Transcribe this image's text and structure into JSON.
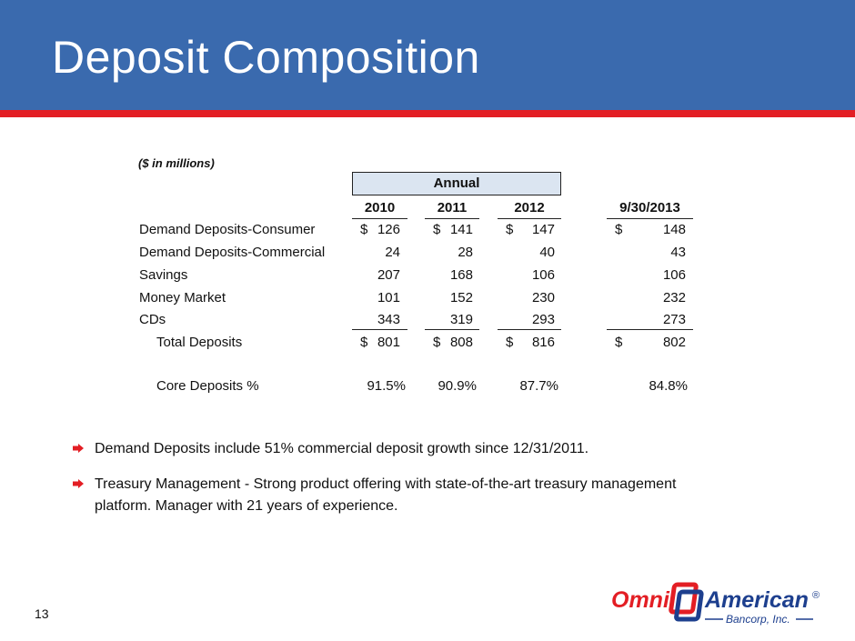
{
  "slide": {
    "title": "Deposit Composition",
    "page_number": "13"
  },
  "table": {
    "units_note": "($ in millions)",
    "group_header": "Annual",
    "columns": [
      "2010",
      "2011",
      "2012",
      "9/30/2013"
    ],
    "rows": [
      {
        "label": "Demand Deposits-Consumer",
        "values": [
          "126",
          "141",
          "147",
          "148"
        ],
        "dollar": true
      },
      {
        "label": "Demand Deposits-Commercial",
        "values": [
          "24",
          "28",
          "40",
          "43"
        ],
        "dollar": false
      },
      {
        "label": "Savings",
        "values": [
          "207",
          "168",
          "106",
          "106"
        ],
        "dollar": false
      },
      {
        "label": "Money Market",
        "values": [
          "101",
          "152",
          "230",
          "232"
        ],
        "dollar": false
      },
      {
        "label": "CDs",
        "values": [
          "343",
          "319",
          "293",
          "273"
        ],
        "dollar": false
      },
      {
        "label": "Total Deposits",
        "values": [
          "801",
          "808",
          "816",
          "802"
        ],
        "dollar": true
      },
      {
        "label": "Core Deposits %",
        "values": [
          "91.5%",
          "90.9%",
          "87.7%",
          "84.8%"
        ],
        "dollar": false
      }
    ],
    "currency_symbol": "$"
  },
  "bullets": [
    "Demand Deposits include 51% commercial deposit growth since 12/31/2011.",
    "Treasury Management - Strong product offering with state-of-the-art treasury management platform.   Manager with 21 years of experience."
  ],
  "logo": {
    "name_part1": "Omni",
    "name_part2": "American",
    "sub": "Bancorp, Inc.",
    "registered": "®",
    "colors": {
      "red": "#e31e24",
      "blue": "#1d3f8e"
    }
  },
  "colors": {
    "header_blue": "#3a6aae",
    "header_red": "#e31e24",
    "annual_fill": "#dbe5f1"
  }
}
